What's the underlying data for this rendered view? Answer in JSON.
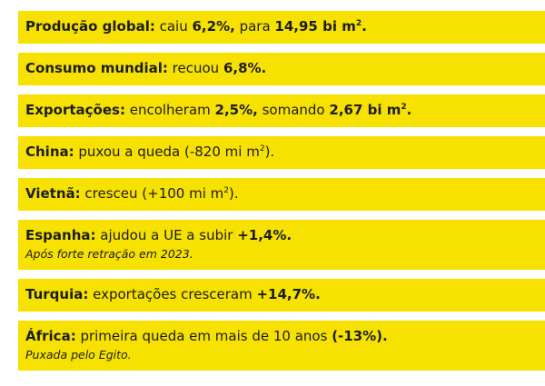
{
  "items": [
    {
      "segments": [
        {
          "text": "Produção global:",
          "bold": true
        },
        {
          "text": " caiu "
        },
        {
          "text": "6,2%,",
          "bold": true
        },
        {
          "text": " para "
        },
        {
          "text": "14,95 bi m",
          "bold": true
        },
        {
          "text": "2",
          "bold": true,
          "sup": true
        },
        {
          "text": ".",
          "bold": true
        }
      ]
    },
    {
      "segments": [
        {
          "text": "Consumo mundial:",
          "bold": true
        },
        {
          "text": " recuou "
        },
        {
          "text": "6,8%.",
          "bold": true
        }
      ]
    },
    {
      "segments": [
        {
          "text": "Exportações:",
          "bold": true
        },
        {
          "text": " encolheram "
        },
        {
          "text": "2,5%,",
          "bold": true
        },
        {
          "text": " somando "
        },
        {
          "text": "2,67 bi m",
          "bold": true
        },
        {
          "text": "2",
          "bold": true,
          "sup": true
        },
        {
          "text": ".",
          "bold": true
        }
      ]
    },
    {
      "segments": [
        {
          "text": "China:",
          "bold": true
        },
        {
          "text": " puxou a queda (-820 mi m"
        },
        {
          "text": "2",
          "sup": true
        },
        {
          "text": ")."
        }
      ]
    },
    {
      "segments": [
        {
          "text": "Vietnã:",
          "bold": true
        },
        {
          "text": " cresceu (+100 mi m"
        },
        {
          "text": "2",
          "sup": true
        },
        {
          "text": ")."
        }
      ]
    },
    {
      "segments": [
        {
          "text": "Espanha:",
          "bold": true
        },
        {
          "text": " ajudou a UE a subir "
        },
        {
          "text": "+1,4%.",
          "bold": true
        }
      ],
      "note": "Após forte retração em 2023."
    },
    {
      "segments": [
        {
          "text": "Turquia:",
          "bold": true
        },
        {
          "text": " exportações cresceram "
        },
        {
          "text": "+14,7%.",
          "bold": true
        }
      ]
    },
    {
      "segments": [
        {
          "text": "África:",
          "bold": true
        },
        {
          "text": " primeira queda em mais de 10 anos "
        },
        {
          "text": "(-13%).",
          "bold": true
        }
      ],
      "note": "Puxada pelo Egito."
    }
  ]
}
